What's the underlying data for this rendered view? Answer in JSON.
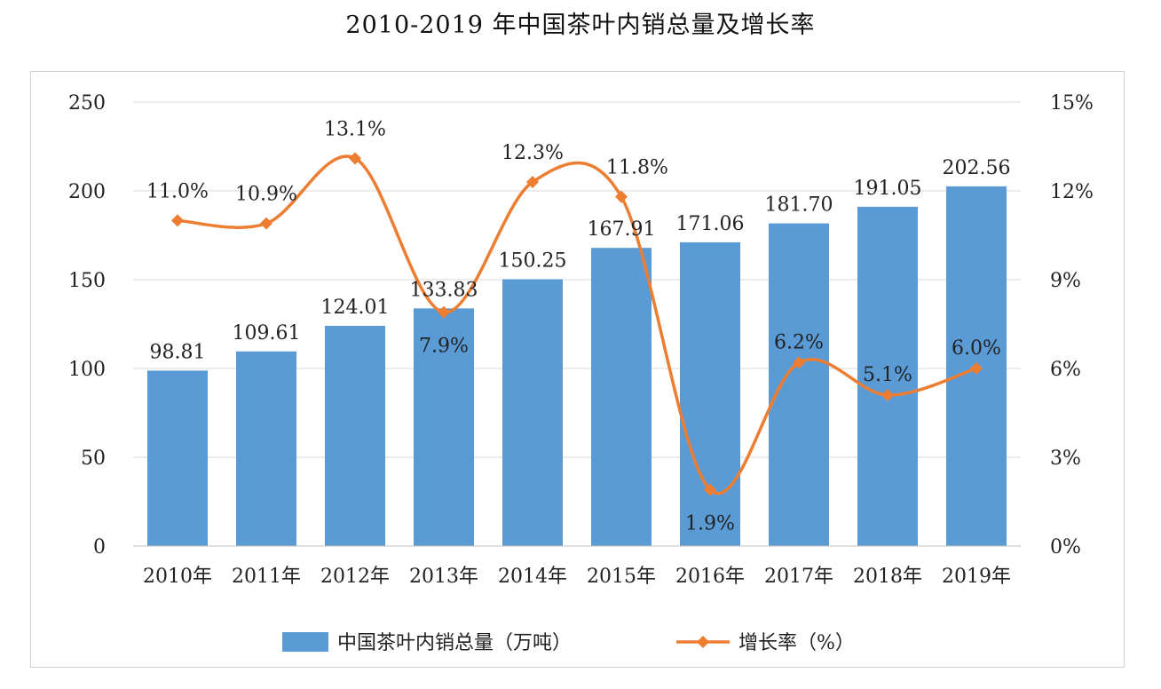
{
  "chart_data": {
    "type": "bar",
    "title": "2010-2019 年中国茶叶内销总量及增长率",
    "categories": [
      "2010年",
      "2011年",
      "2012年",
      "2013年",
      "2014年",
      "2015年",
      "2016年",
      "2017年",
      "2018年",
      "2019年"
    ],
    "series": [
      {
        "name": "中国茶叶内销总量（万吨）",
        "type": "bar",
        "axis": "left",
        "color": "#5b9bd5",
        "values": [
          98.81,
          109.61,
          124.01,
          133.83,
          150.25,
          167.91,
          171.06,
          181.7,
          191.05,
          202.56
        ],
        "labels": [
          "98.81",
          "109.61",
          "124.01",
          "133.83",
          "150.25",
          "167.91",
          "171.06",
          "181.70",
          "191.05",
          "202.56"
        ]
      },
      {
        "name": "增长率（%）",
        "type": "line",
        "axis": "right",
        "color": "#ed7d31",
        "values": [
          11.0,
          10.9,
          13.1,
          7.9,
          12.3,
          11.8,
          1.9,
          6.2,
          5.1,
          6.0
        ],
        "labels": [
          "11.0%",
          "10.9%",
          "13.1%",
          "7.9%",
          "12.3%",
          "11.8%",
          "1.9%",
          "6.2%",
          "5.1%",
          "6.0%"
        ]
      }
    ],
    "y_left": {
      "ylim": [
        0,
        250
      ],
      "ticks": [
        "0",
        "50",
        "100",
        "150",
        "200",
        "250"
      ],
      "tick_values": [
        0,
        50,
        100,
        150,
        200,
        250
      ]
    },
    "y_right": {
      "ylim": [
        0,
        15
      ],
      "ticks": [
        "0%",
        "3%",
        "6%",
        "9%",
        "12%",
        "15%"
      ],
      "tick_values": [
        0,
        3,
        6,
        9,
        12,
        15
      ]
    },
    "grid": true,
    "legend_position": "bottom"
  }
}
